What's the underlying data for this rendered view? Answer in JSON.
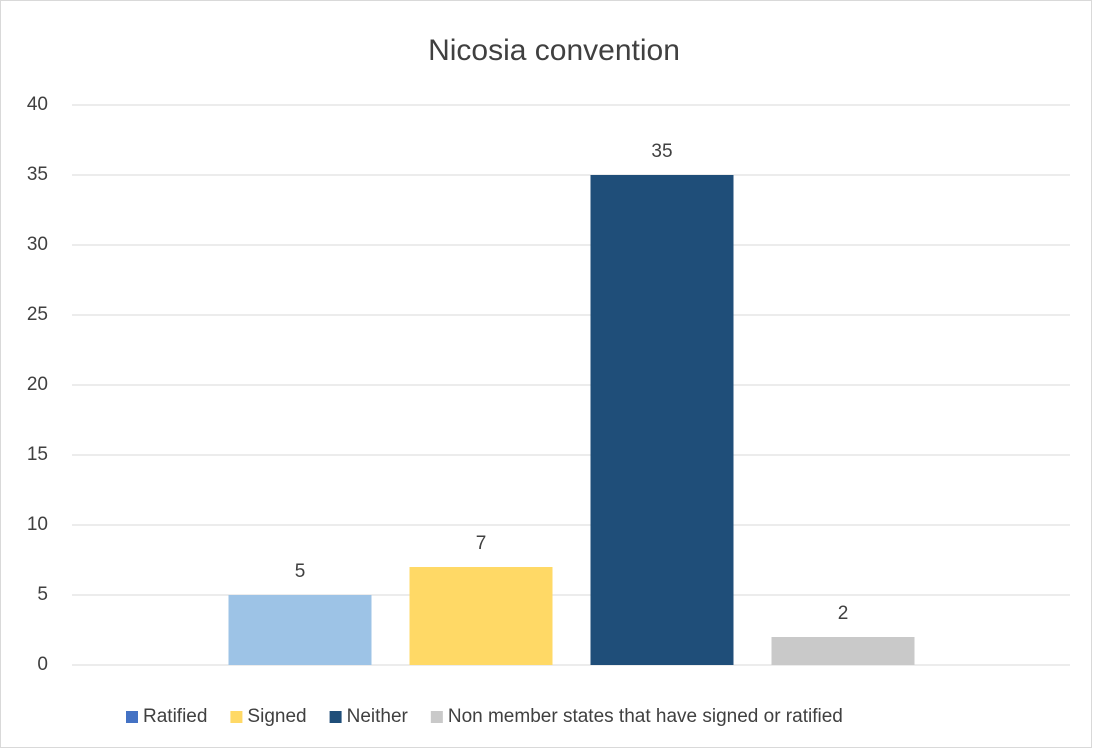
{
  "chart_data": {
    "type": "bar",
    "title": "Nicosia convention",
    "series": [
      {
        "name": "Ratified",
        "color": "#4472c4",
        "bar_color": "#9dc3e6",
        "values": [
          5
        ]
      },
      {
        "name": "Signed",
        "color": "#ffd966",
        "bar_color": "#ffd966",
        "values": [
          7
        ]
      },
      {
        "name": "Neither",
        "color": "#1f4e79",
        "bar_color": "#1f4e79",
        "values": [
          35
        ]
      },
      {
        "name": "Non member states that have signed or ratified",
        "color": "#c9c9c9",
        "bar_color": "#c9c9c9",
        "values": [
          2
        ]
      }
    ],
    "ylim": [
      0,
      40
    ],
    "yticks": [
      0,
      5,
      10,
      15,
      20,
      25,
      30,
      35,
      40
    ],
    "grid": true,
    "legend": "bottom"
  }
}
